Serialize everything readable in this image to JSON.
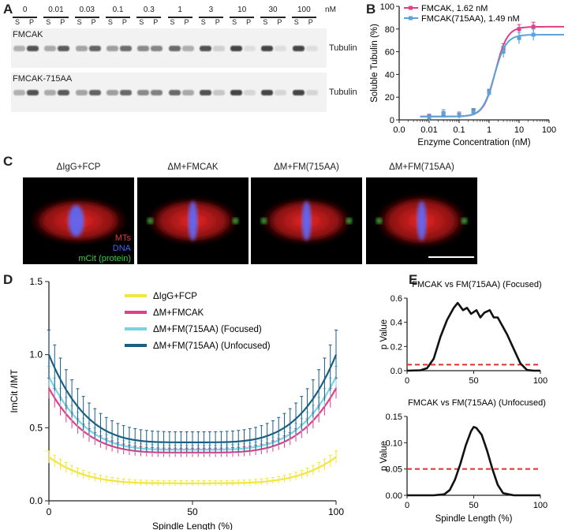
{
  "panel_labels": {
    "A": "A",
    "B": "B",
    "C": "C",
    "D": "D",
    "E": "E"
  },
  "panelA": {
    "concentrations": [
      "0",
      "0.01",
      "0.03",
      "0.1",
      "0.3",
      "1",
      "3",
      "10",
      "30",
      "100"
    ],
    "unit": "nM",
    "sp": [
      "S",
      "P"
    ],
    "gels": [
      {
        "name": "FMCAK",
        "band_label": "Tubulin"
      },
      {
        "name": "FMCAK-715AA",
        "band_label": "Tubulin"
      }
    ]
  },
  "panelC": {
    "images": [
      {
        "title": "ΔIgG+FCP"
      },
      {
        "title": "ΔM+FMCAK"
      },
      {
        "title": "ΔM+FM(715AA)"
      },
      {
        "title": "ΔM+FM(715AA)"
      }
    ],
    "channel_labels": [
      {
        "text": "MTs",
        "color": "#e53935"
      },
      {
        "text": "DNA",
        "color": "#4a62e8"
      },
      {
        "text": "mCit (protein)",
        "color": "#43c843"
      }
    ]
  },
  "chart_data": [
    {
      "id": "B",
      "type": "line",
      "xlabel": "Enzyme Concentration (nM)",
      "ylabel": "Soluble Tubulin (%)",
      "xscale": "log",
      "xticks": [
        "0.0",
        "0.01",
        "0.1",
        "1",
        "10",
        "100"
      ],
      "ylim": [
        0,
        100
      ],
      "yticks": [
        "0",
        "20",
        "40",
        "60",
        "80",
        "100"
      ],
      "legend_position": "top-left",
      "series": [
        {
          "name": "FMCAK, 1.62 nM",
          "color": "#e0408a",
          "x": [
            0.01,
            0.03,
            0.1,
            0.3,
            1,
            3,
            10,
            30
          ],
          "y": [
            3,
            5,
            4,
            8,
            25,
            63,
            80,
            82
          ]
        },
        {
          "name": "FMCAK(715AA), 1.49 nM",
          "color": "#5ba3d8",
          "x": [
            0.01,
            0.03,
            0.1,
            0.3,
            1,
            3,
            10,
            30
          ],
          "y": [
            2,
            6,
            4,
            7,
            24,
            60,
            72,
            75
          ]
        }
      ]
    },
    {
      "id": "D",
      "type": "line",
      "xlabel": "Spindle Length (%)",
      "ylabel": "ImCit /IMT",
      "xlim": [
        0,
        100
      ],
      "ylim": [
        0,
        1.5
      ],
      "xticks": [
        "0",
        "50",
        "100"
      ],
      "yticks": [
        "0.0",
        "0.5",
        "1.0",
        "1.5"
      ],
      "legend_position": "top-center",
      "series": [
        {
          "name": "ΔIgG+FCP",
          "color": "#f2e640",
          "ends": 0.3,
          "mid": 0.12,
          "err": 0.03
        },
        {
          "name": "ΔM+FMCAK",
          "color": "#e0408a",
          "ends": 0.77,
          "mid": 0.33,
          "err": 0.05
        },
        {
          "name": "ΔM+FM(715AA) (Focused)",
          "color": "#7ad3e3",
          "ends": 0.85,
          "mid": 0.35,
          "err": 0.05
        },
        {
          "name": "ΔM+FM(715AA) (Unfocused)",
          "color": "#1c5f82",
          "ends": 1.0,
          "mid": 0.4,
          "err": 0.12
        }
      ]
    },
    {
      "id": "E-top",
      "type": "line",
      "title": "FMCAK vs FM(715AA) (Focused)",
      "xlabel": "",
      "ylabel": "p Value",
      "xlim": [
        0,
        100
      ],
      "ylim": [
        0,
        0.6
      ],
      "xticks": [
        "0",
        "50",
        "100"
      ],
      "yticks": [
        "0.0",
        "0.2",
        "0.4",
        "0.6"
      ],
      "threshold": 0.05,
      "x": [
        0,
        10,
        15,
        20,
        25,
        30,
        35,
        38,
        42,
        45,
        48,
        52,
        55,
        58,
        62,
        65,
        68,
        72,
        75,
        80,
        85,
        90,
        95,
        100
      ],
      "y": [
        0,
        0.003,
        0.02,
        0.1,
        0.28,
        0.42,
        0.52,
        0.56,
        0.5,
        0.52,
        0.47,
        0.5,
        0.44,
        0.48,
        0.5,
        0.44,
        0.44,
        0.36,
        0.3,
        0.18,
        0.06,
        0.005,
        0,
        0
      ]
    },
    {
      "id": "E-bottom",
      "type": "line",
      "title": "FMCAK vs FM(715AA) (Unfocused)",
      "xlabel": "Spindle Length (%)",
      "ylabel": "p Value",
      "xlim": [
        0,
        100
      ],
      "ylim": [
        0,
        0.15
      ],
      "xticks": [
        "0",
        "50",
        "100"
      ],
      "yticks": [
        "0.00",
        "0.05",
        "0.10",
        "0.15"
      ],
      "threshold": 0.05,
      "x": [
        0,
        20,
        28,
        32,
        36,
        40,
        44,
        48,
        50,
        52,
        56,
        60,
        64,
        68,
        72,
        80,
        100
      ],
      "y": [
        0,
        0,
        0.002,
        0.01,
        0.03,
        0.06,
        0.095,
        0.122,
        0.13,
        0.128,
        0.115,
        0.085,
        0.05,
        0.02,
        0.004,
        0,
        0
      ]
    }
  ]
}
